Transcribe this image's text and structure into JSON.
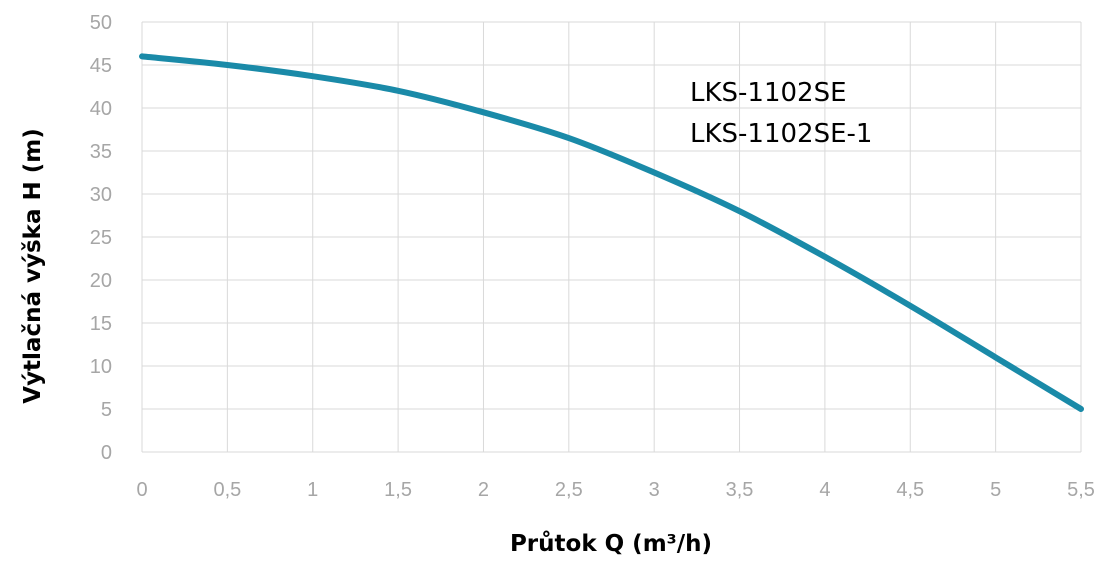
{
  "chart_data": {
    "type": "line",
    "title": "",
    "xlabel": "Průtok Q (m³/h)",
    "ylabel": "Výtlačná výška H (m)",
    "xlim": [
      0,
      5.5
    ],
    "ylim": [
      0,
      50
    ],
    "x_ticks": [
      "0",
      "0,5",
      "1",
      "1,5",
      "2",
      "2,5",
      "3",
      "3,5",
      "4",
      "4,5",
      "5",
      "5,5"
    ],
    "y_ticks": [
      "0",
      "5",
      "10",
      "15",
      "20",
      "25",
      "30",
      "35",
      "40",
      "45",
      "50"
    ],
    "grid": true,
    "annotations": [
      "LKS-1102SE",
      "LKS-1102SE-1"
    ],
    "series": [
      {
        "color": "#1a8aa8",
        "x": [
          0,
          0.5,
          1,
          1.5,
          2,
          2.5,
          3,
          3.5,
          4,
          4.5,
          5,
          5.5
        ],
        "y": [
          46,
          45,
          43.7,
          42,
          39.5,
          36.5,
          32.5,
          28,
          22.7,
          17,
          11,
          5
        ]
      }
    ]
  }
}
